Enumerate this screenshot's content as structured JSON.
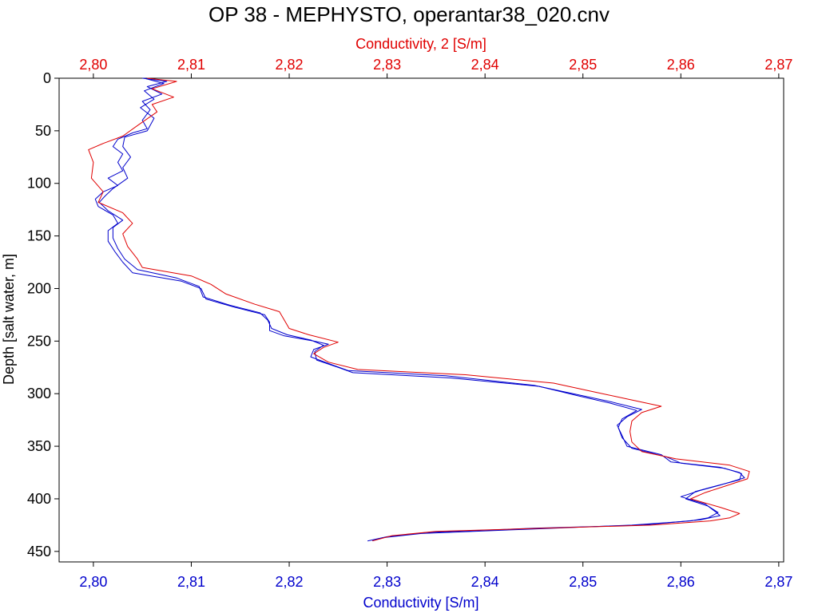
{
  "chart_data": {
    "type": "line",
    "title": "OP 38 - MEPHYSTO, operantar38_020.cnv",
    "ylabel": "Depth [salt water, m]",
    "y_inverted": true,
    "ylim": [
      0,
      460
    ],
    "yticks": [
      0,
      50,
      100,
      150,
      200,
      250,
      300,
      350,
      400,
      450
    ],
    "ytick_labels": [
      "0",
      "50",
      "100",
      "150",
      "200",
      "250",
      "300",
      "350",
      "400",
      "450"
    ],
    "grid": false,
    "legend": "none",
    "x_axes": {
      "top": {
        "label": "Conductivity, 2 [S/m]",
        "color": "#e00000",
        "xlim": [
          2.7965,
          2.8705
        ],
        "ticks": [
          2.8,
          2.81,
          2.82,
          2.83,
          2.84,
          2.85,
          2.86,
          2.87
        ],
        "tick_labels": [
          "2,80",
          "2,81",
          "2,82",
          "2,83",
          "2,84",
          "2,85",
          "2,86",
          "2,87"
        ]
      },
      "bottom": {
        "label": "Conductivity [S/m]",
        "color": "#0000cc",
        "xlim": [
          2.7965,
          2.8705
        ],
        "ticks": [
          2.8,
          2.81,
          2.82,
          2.83,
          2.84,
          2.85,
          2.86,
          2.87
        ],
        "tick_labels": [
          "2,80",
          "2,81",
          "2,82",
          "2,83",
          "2,84",
          "2,85",
          "2,86",
          "2,87"
        ]
      }
    },
    "series": [
      {
        "axis": "bottom",
        "color": "#0000cc",
        "points": [
          [
            2.805,
            0
          ],
          [
            2.8075,
            3
          ],
          [
            2.8055,
            8
          ],
          [
            2.807,
            15
          ],
          [
            2.805,
            22
          ],
          [
            2.8058,
            30
          ],
          [
            2.805,
            40
          ],
          [
            2.8055,
            48
          ],
          [
            2.804,
            52
          ],
          [
            2.8025,
            58
          ],
          [
            2.802,
            65
          ],
          [
            2.803,
            72
          ],
          [
            2.8025,
            80
          ],
          [
            2.803,
            88
          ],
          [
            2.8015,
            95
          ],
          [
            2.8025,
            102
          ],
          [
            2.801,
            108
          ],
          [
            2.8002,
            115
          ],
          [
            2.8005,
            122
          ],
          [
            2.802,
            130
          ],
          [
            2.8025,
            138
          ],
          [
            2.8015,
            145
          ],
          [
            2.8015,
            155
          ],
          [
            2.8022,
            165
          ],
          [
            2.803,
            175
          ],
          [
            2.804,
            185
          ],
          [
            2.809,
            193
          ],
          [
            2.811,
            200
          ],
          [
            2.8115,
            210
          ],
          [
            2.8145,
            218
          ],
          [
            2.8175,
            225
          ],
          [
            2.818,
            232
          ],
          [
            2.818,
            240
          ],
          [
            2.8195,
            245
          ],
          [
            2.8225,
            250
          ],
          [
            2.824,
            253
          ],
          [
            2.8225,
            258
          ],
          [
            2.8222,
            265
          ],
          [
            2.8245,
            273
          ],
          [
            2.826,
            278
          ],
          [
            2.836,
            283
          ],
          [
            2.845,
            292
          ],
          [
            2.849,
            300
          ],
          [
            2.853,
            308
          ],
          [
            2.856,
            315
          ],
          [
            2.8545,
            322
          ],
          [
            2.8535,
            330
          ],
          [
            2.854,
            340
          ],
          [
            2.8545,
            350
          ],
          [
            2.858,
            358
          ],
          [
            2.859,
            365
          ],
          [
            2.864,
            370
          ],
          [
            2.866,
            375
          ],
          [
            2.8665,
            380
          ],
          [
            2.864,
            387
          ],
          [
            2.862,
            392
          ],
          [
            2.86,
            398
          ],
          [
            2.8625,
            405
          ],
          [
            2.8635,
            412
          ],
          [
            2.864,
            416
          ],
          [
            2.862,
            420
          ],
          [
            2.856,
            425
          ],
          [
            2.845,
            428
          ],
          [
            2.834,
            432
          ],
          [
            2.83,
            436
          ],
          [
            2.828,
            440
          ]
        ]
      },
      {
        "axis": "bottom",
        "color": "#0000cc",
        "points": [
          [
            2.8052,
            0
          ],
          [
            2.8072,
            5
          ],
          [
            2.8052,
            12
          ],
          [
            2.8062,
            20
          ],
          [
            2.8048,
            28
          ],
          [
            2.8062,
            38
          ],
          [
            2.8055,
            50
          ],
          [
            2.8032,
            56
          ],
          [
            2.803,
            65
          ],
          [
            2.8038,
            75
          ],
          [
            2.803,
            85
          ],
          [
            2.8035,
            95
          ],
          [
            2.802,
            105
          ],
          [
            2.8012,
            112
          ],
          [
            2.8006,
            118
          ],
          [
            2.8015,
            126
          ],
          [
            2.803,
            135
          ],
          [
            2.802,
            142
          ],
          [
            2.802,
            152
          ],
          [
            2.8025,
            162
          ],
          [
            2.8032,
            172
          ],
          [
            2.8045,
            182
          ],
          [
            2.8085,
            190
          ],
          [
            2.8108,
            198
          ],
          [
            2.8112,
            208
          ],
          [
            2.814,
            216
          ],
          [
            2.817,
            223
          ],
          [
            2.8178,
            230
          ],
          [
            2.8182,
            238
          ],
          [
            2.8198,
            244
          ],
          [
            2.8222,
            249
          ],
          [
            2.8235,
            254
          ],
          [
            2.8226,
            260
          ],
          [
            2.8228,
            268
          ],
          [
            2.825,
            275
          ],
          [
            2.8265,
            280
          ],
          [
            2.8365,
            285
          ],
          [
            2.8455,
            293
          ],
          [
            2.8495,
            302
          ],
          [
            2.8528,
            309
          ],
          [
            2.8555,
            316
          ],
          [
            2.854,
            324
          ],
          [
            2.8536,
            332
          ],
          [
            2.854,
            342
          ],
          [
            2.855,
            352
          ],
          [
            2.8585,
            360
          ],
          [
            2.86,
            366
          ],
          [
            2.8645,
            371
          ],
          [
            2.8662,
            376
          ],
          [
            2.866,
            382
          ],
          [
            2.8635,
            388
          ],
          [
            2.8615,
            393
          ],
          [
            2.8605,
            400
          ],
          [
            2.8628,
            407
          ],
          [
            2.8638,
            413
          ],
          [
            2.8628,
            418
          ],
          [
            2.861,
            421
          ],
          [
            2.855,
            425
          ],
          [
            2.844,
            429
          ],
          [
            2.8335,
            433
          ],
          [
            2.8295,
            437
          ],
          [
            2.8285,
            440
          ]
        ]
      },
      {
        "axis": "top",
        "color": "#e00000",
        "points": [
          [
            2.8055,
            0
          ],
          [
            2.8085,
            3
          ],
          [
            2.806,
            10
          ],
          [
            2.8082,
            18
          ],
          [
            2.806,
            25
          ],
          [
            2.8065,
            32
          ],
          [
            2.8045,
            45
          ],
          [
            2.803,
            55
          ],
          [
            2.801,
            62
          ],
          [
            2.7995,
            68
          ],
          [
            2.8,
            80
          ],
          [
            2.7998,
            95
          ],
          [
            2.801,
            108
          ],
          [
            2.8005,
            118
          ],
          [
            2.803,
            128
          ],
          [
            2.804,
            138
          ],
          [
            2.803,
            148
          ],
          [
            2.8035,
            160
          ],
          [
            2.8045,
            172
          ],
          [
            2.805,
            180
          ],
          [
            2.81,
            188
          ],
          [
            2.812,
            196
          ],
          [
            2.8135,
            205
          ],
          [
            2.8165,
            215
          ],
          [
            2.819,
            222
          ],
          [
            2.8195,
            230
          ],
          [
            2.82,
            238
          ],
          [
            2.822,
            244
          ],
          [
            2.825,
            251
          ],
          [
            2.8235,
            256
          ],
          [
            2.8225,
            262
          ],
          [
            2.824,
            270
          ],
          [
            2.827,
            277
          ],
          [
            2.838,
            282
          ],
          [
            2.847,
            290
          ],
          [
            2.851,
            298
          ],
          [
            2.855,
            306
          ],
          [
            2.858,
            312
          ],
          [
            2.856,
            318
          ],
          [
            2.855,
            326
          ],
          [
            2.8548,
            336
          ],
          [
            2.855,
            346
          ],
          [
            2.856,
            355
          ],
          [
            2.8595,
            362
          ],
          [
            2.865,
            368
          ],
          [
            2.867,
            374
          ],
          [
            2.8668,
            381
          ],
          [
            2.8645,
            388
          ],
          [
            2.8625,
            394
          ],
          [
            2.861,
            400
          ],
          [
            2.864,
            408
          ],
          [
            2.866,
            414
          ],
          [
            2.865,
            418
          ],
          [
            2.863,
            421
          ],
          [
            2.857,
            425
          ],
          [
            2.846,
            428
          ],
          [
            2.835,
            431
          ],
          [
            2.8305,
            435
          ],
          [
            2.8285,
            440
          ]
        ]
      }
    ]
  }
}
